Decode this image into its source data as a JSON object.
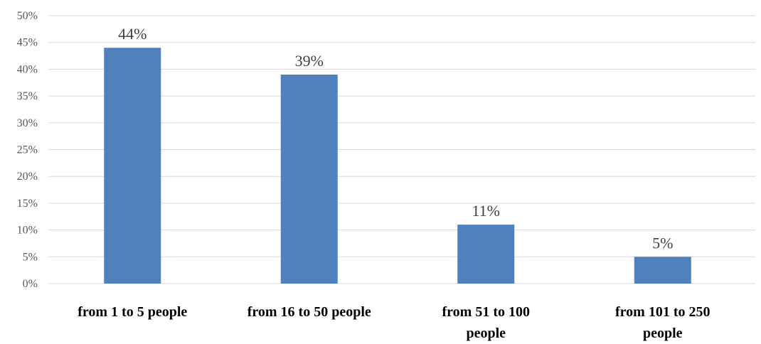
{
  "chart_data": {
    "type": "bar",
    "categories": [
      [
        "from 1 to 5 people"
      ],
      [
        "from 16 to 50 people"
      ],
      [
        "from 51 to 100",
        "people"
      ],
      [
        "from 101 to 250",
        "people"
      ]
    ],
    "values": [
      44,
      39,
      11,
      5
    ],
    "data_labels": [
      "44%",
      "39%",
      "11%",
      "5%"
    ],
    "yticks": [
      "0%",
      "5%",
      "10%",
      "15%",
      "20%",
      "25%",
      "30%",
      "35%",
      "40%",
      "45%",
      "50%"
    ],
    "ylim": [
      0,
      50
    ],
    "ystep": 5,
    "title": "",
    "xlabel": "",
    "ylabel": "",
    "grid": true,
    "legend": "none",
    "bar_color": "#4f81bd",
    "grid_color": "#d9d9d9"
  }
}
